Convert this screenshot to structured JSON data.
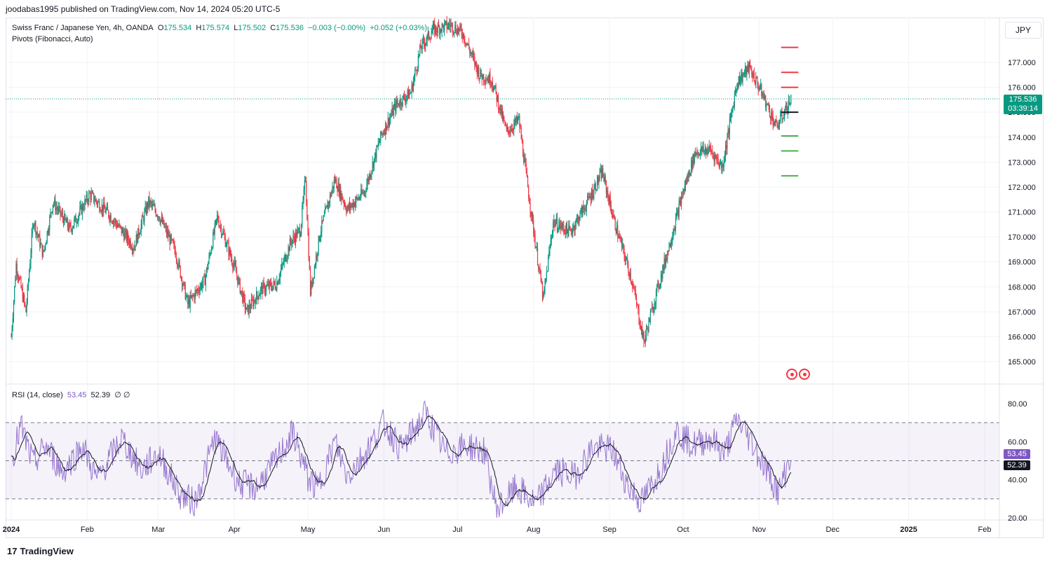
{
  "header": {
    "published": "joodabas1995 published on TradingView.com, Nov 14, 2024 05:20 UTC-5"
  },
  "legend": {
    "symbol": "Swiss Franc / Japanese Yen, 4h, OANDA",
    "o_label": "O",
    "o_value": "175.534",
    "h_label": "H",
    "h_value": "175.574",
    "l_label": "L",
    "l_value": "175.502",
    "c_label": "C",
    "c_value": "175.536",
    "change": "−0.003 (−0.00%)",
    "change2": "+0.052 (+0.03%)",
    "pivots": "Pivots (Fibonacci, Auto)",
    "rsi_label": "RSI (14, close)",
    "rsi_value": "53.45",
    "rsi_ma_value": "52.39",
    "rsi_extra": "∅ ∅"
  },
  "currency": "JPY",
  "price_tag": {
    "price": "175.536",
    "countdown": "03:39:14"
  },
  "rsi_tags": {
    "rsi": "53.45",
    "ma": "52.39"
  },
  "footer": {
    "brand": "TradingView",
    "mark": "17"
  },
  "colors": {
    "up": "#089981",
    "down": "#f23645",
    "rsi": "#7e57c2",
    "rsi_ma": "#131722",
    "pivot_r": "#f23645",
    "pivot_s": "#4caf50",
    "pivot_p": "#131722"
  },
  "chart_data": [
    {
      "type": "candlestick",
      "title": "Swiss Franc / Japanese Yen, 4h, OANDA",
      "y_unit": "JPY",
      "ylim": [
        164.2,
        178.5
      ],
      "y_ticks": [
        "165.000",
        "166.000",
        "167.000",
        "168.000",
        "169.000",
        "170.000",
        "171.000",
        "172.000",
        "173.000",
        "174.000",
        "175.000",
        "176.000",
        "177.000"
      ],
      "x_ticks": [
        "2024",
        "Feb",
        "Mar",
        "Apr",
        "May",
        "Jun",
        "Jul",
        "Aug",
        "Sep",
        "Oct",
        "Nov",
        "Dec",
        "2025",
        "Feb"
      ],
      "x_tick_dates": [
        "2024-01-01",
        "2024-02-01",
        "2024-03-01",
        "2024-04-01",
        "2024-05-01",
        "2024-06-01",
        "2024-07-01",
        "2024-08-01",
        "2024-09-01",
        "2024-10-01",
        "2024-11-01",
        "2024-12-01",
        "2025-01-01",
        "2025-02-01"
      ],
      "last_price": 175.536,
      "price_path": [
        [
          "2024-01-01",
          166.0
        ],
        [
          "2024-01-03",
          168.9
        ],
        [
          "2024-01-07",
          167.0
        ],
        [
          "2024-01-10",
          170.7
        ],
        [
          "2024-01-14",
          169.3
        ],
        [
          "2024-01-18",
          171.4
        ],
        [
          "2024-01-25",
          170.3
        ],
        [
          "2024-02-02",
          171.7
        ],
        [
          "2024-02-10",
          170.9
        ],
        [
          "2024-02-20",
          169.6
        ],
        [
          "2024-02-26",
          171.4
        ],
        [
          "2024-03-01",
          170.9
        ],
        [
          "2024-03-08",
          169.4
        ],
        [
          "2024-03-13",
          167.3
        ],
        [
          "2024-03-20",
          168.3
        ],
        [
          "2024-03-25",
          170.8
        ],
        [
          "2024-04-01",
          168.8
        ],
        [
          "2024-04-06",
          167.0
        ],
        [
          "2024-04-12",
          167.9
        ],
        [
          "2024-04-18",
          168.1
        ],
        [
          "2024-04-24",
          169.8
        ],
        [
          "2024-04-28",
          170.3
        ],
        [
          "2024-04-30",
          172.4
        ],
        [
          "2024-05-02",
          167.8
        ],
        [
          "2024-05-06",
          170.2
        ],
        [
          "2024-05-12",
          172.3
        ],
        [
          "2024-05-17",
          171.1
        ],
        [
          "2024-05-24",
          171.8
        ],
        [
          "2024-05-31",
          174.1
        ],
        [
          "2024-06-06",
          175.3
        ],
        [
          "2024-06-12",
          175.8
        ],
        [
          "2024-06-16",
          177.6
        ],
        [
          "2024-06-21",
          178.3
        ],
        [
          "2024-06-28",
          178.5
        ],
        [
          "2024-07-03",
          178.2
        ],
        [
          "2024-07-10",
          176.5
        ],
        [
          "2024-07-15",
          176.3
        ],
        [
          "2024-07-21",
          174.2
        ],
        [
          "2024-07-26",
          174.7
        ],
        [
          "2024-07-31",
          171.0
        ],
        [
          "2024-08-05",
          167.5
        ],
        [
          "2024-08-09",
          170.6
        ],
        [
          "2024-08-16",
          170.2
        ],
        [
          "2024-08-23",
          171.4
        ],
        [
          "2024-08-29",
          172.6
        ],
        [
          "2024-09-03",
          170.6
        ],
        [
          "2024-09-10",
          168.3
        ],
        [
          "2024-09-15",
          165.8
        ],
        [
          "2024-09-20",
          167.7
        ],
        [
          "2024-09-26",
          169.9
        ],
        [
          "2024-10-01",
          171.8
        ],
        [
          "2024-10-06",
          173.4
        ],
        [
          "2024-10-12",
          173.5
        ],
        [
          "2024-10-17",
          172.8
        ],
        [
          "2024-10-23",
          176.2
        ],
        [
          "2024-10-28",
          176.8
        ],
        [
          "2024-11-02",
          175.8
        ],
        [
          "2024-11-08",
          174.4
        ],
        [
          "2024-11-14",
          175.5
        ]
      ],
      "pivots": {
        "R3": 177.6,
        "R2": 176.6,
        "R1": 176.0,
        "P": 175.0,
        "S1": 174.05,
        "S2": 173.45,
        "S3": 172.45
      },
      "pivot_range": [
        "2024-11-10",
        "2024-11-17"
      ]
    },
    {
      "type": "line",
      "title": "RSI (14, close)",
      "ylim": [
        18,
        84
      ],
      "y_ticks": [
        "20.00",
        "40.00",
        "60.00",
        "80.00"
      ],
      "bands": {
        "upper": 70,
        "middle": 50,
        "lower": 30
      },
      "series": [
        {
          "name": "RSI",
          "last": 53.45
        },
        {
          "name": "RSI-based MA",
          "last": 52.39
        }
      ],
      "rsi_path": [
        [
          "2024-01-01",
          50
        ],
        [
          "2024-01-05",
          68
        ],
        [
          "2024-01-10",
          48
        ],
        [
          "2024-01-15",
          58
        ],
        [
          "2024-01-22",
          44
        ],
        [
          "2024-01-30",
          58
        ],
        [
          "2024-02-05",
          40
        ],
        [
          "2024-02-15",
          62
        ],
        [
          "2024-02-23",
          45
        ],
        [
          "2024-03-01",
          54
        ],
        [
          "2024-03-10",
          32
        ],
        [
          "2024-03-16",
          28
        ],
        [
          "2024-03-24",
          62
        ],
        [
          "2024-04-03",
          38
        ],
        [
          "2024-04-10",
          36
        ],
        [
          "2024-04-18",
          50
        ],
        [
          "2024-04-25",
          65
        ],
        [
          "2024-05-01",
          41
        ],
        [
          "2024-05-05",
          35
        ],
        [
          "2024-05-12",
          60
        ],
        [
          "2024-05-17",
          42
        ],
        [
          "2024-05-25",
          55
        ],
        [
          "2024-06-01",
          70
        ],
        [
          "2024-06-08",
          56
        ],
        [
          "2024-06-18",
          75
        ],
        [
          "2024-06-26",
          54
        ],
        [
          "2024-07-05",
          58
        ],
        [
          "2024-07-12",
          55
        ],
        [
          "2024-07-17",
          24
        ],
        [
          "2024-07-25",
          36
        ],
        [
          "2024-08-02",
          27
        ],
        [
          "2024-08-10",
          45
        ],
        [
          "2024-08-18",
          42
        ],
        [
          "2024-08-25",
          57
        ],
        [
          "2024-09-02",
          56
        ],
        [
          "2024-09-08",
          38
        ],
        [
          "2024-09-14",
          28
        ],
        [
          "2024-09-22",
          46
        ],
        [
          "2024-09-28",
          66
        ],
        [
          "2024-10-05",
          58
        ],
        [
          "2024-10-12",
          62
        ],
        [
          "2024-10-18",
          54
        ],
        [
          "2024-10-23",
          72
        ],
        [
          "2024-10-28",
          62
        ],
        [
          "2024-11-03",
          48
        ],
        [
          "2024-11-09",
          33
        ],
        [
          "2024-11-14",
          53.45
        ]
      ]
    }
  ]
}
